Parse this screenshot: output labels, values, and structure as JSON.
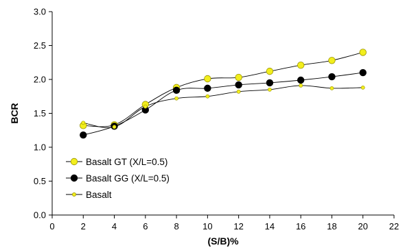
{
  "chart_data": {
    "type": "line",
    "title": "",
    "xlabel": "(S/B)%",
    "ylabel": "BCR",
    "xlim": [
      0,
      22
    ],
    "ylim": [
      0.0,
      3.0
    ],
    "xticks": [
      0,
      2,
      4,
      6,
      8,
      10,
      12,
      14,
      16,
      18,
      20,
      22
    ],
    "yticks": [
      0.0,
      0.5,
      1.0,
      1.5,
      2.0,
      2.5,
      3.0
    ],
    "xtick_labels": [
      "0",
      "2",
      "4",
      "6",
      "8",
      "10",
      "12",
      "14",
      "16",
      "18",
      "20",
      "22"
    ],
    "ytick_labels": [
      "0.0",
      "0.5",
      "1.0",
      "1.5",
      "2.0",
      "2.5",
      "3.0"
    ],
    "grid": false,
    "legend_position": "lower-left",
    "x": [
      2,
      4,
      6,
      8,
      10,
      12,
      14,
      16,
      18,
      20
    ],
    "series": [
      {
        "name": "Basalt GT (X/L=0.5)",
        "values": [
          1.32,
          1.33,
          1.63,
          1.88,
          2.01,
          2.03,
          2.12,
          2.21,
          2.28,
          2.4
        ],
        "color": "#f2ee1d",
        "marker": "large-circle"
      },
      {
        "name": "Basalt GG (X/L=0.5)",
        "values": [
          1.18,
          1.31,
          1.55,
          1.84,
          1.87,
          1.92,
          1.95,
          1.99,
          2.04,
          2.1
        ],
        "color": "#000000",
        "marker": "large-circle"
      },
      {
        "name": "Basalt",
        "values": [
          1.36,
          1.3,
          1.6,
          1.72,
          1.75,
          1.82,
          1.85,
          1.91,
          1.87,
          1.88
        ],
        "color": "#f2ee1d",
        "marker": "small-circle"
      }
    ]
  }
}
